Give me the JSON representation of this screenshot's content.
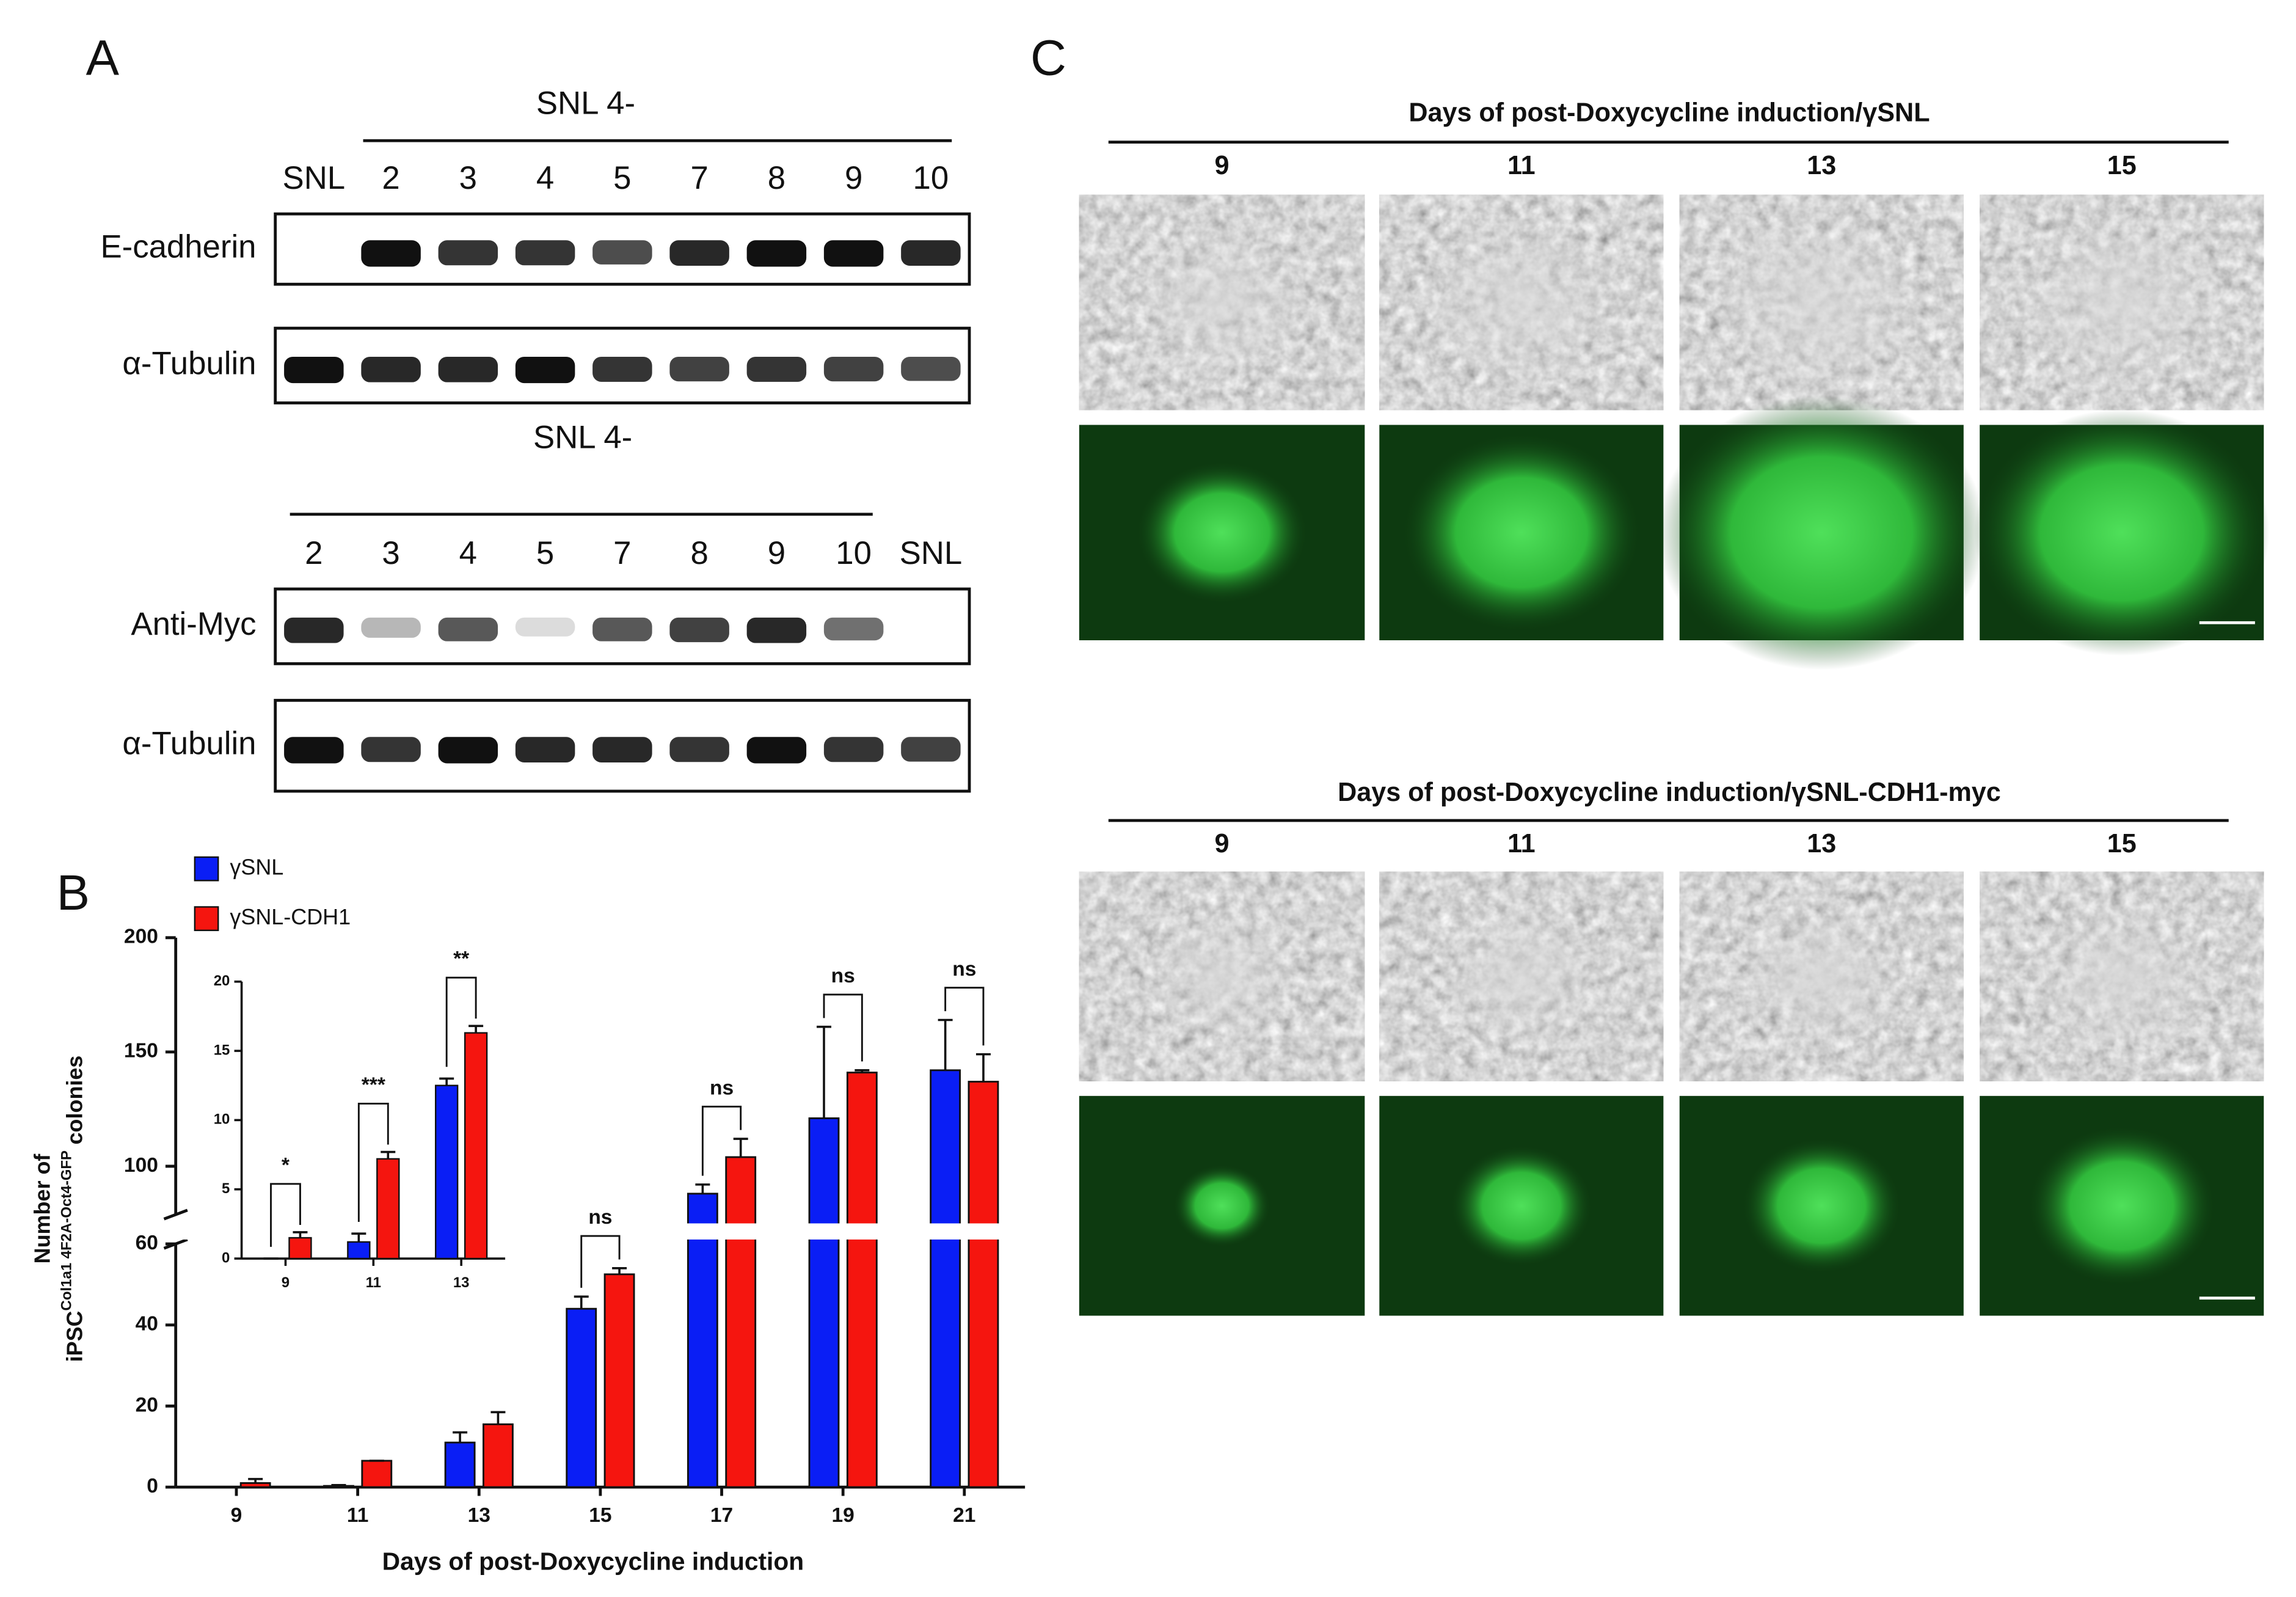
{
  "panel_labels": [
    "A",
    "B",
    "C"
  ],
  "blots": [
    {
      "header": "SNL 4-",
      "lanes": [
        "SNL",
        "2",
        "3",
        "4",
        "5",
        "7",
        "8",
        "9",
        "10"
      ],
      "rows": [
        "E-cadherin",
        "α-Tubulin"
      ]
    },
    {
      "header": "SNL 4-",
      "lanes": [
        "2",
        "3",
        "4",
        "5",
        "7",
        "8",
        "9",
        "10",
        "SNL"
      ],
      "rows": [
        "Anti-Myc",
        "α-Tubulin"
      ]
    }
  ],
  "micrographs": [
    {
      "title": "Days of post-Doxycycline induction/γSNL",
      "days": [
        "9",
        "11",
        "13",
        "15"
      ]
    },
    {
      "title": "Days of post-Doxycycline induction/γSNL-CDH1-myc",
      "days": [
        "9",
        "11",
        "13",
        "15"
      ]
    }
  ],
  "chart_data": [
    {
      "type": "bar",
      "x_label": "Days of post-Doxycycline induction",
      "y_label": [
        "Number of",
        "iPSC",
        "Col1a1 4F2A-Oct4-GFP",
        "colonies"
      ],
      "categories": [
        "9",
        "11",
        "13",
        "15",
        "17",
        "19",
        "21"
      ],
      "series": [
        {
          "name": "γSNL",
          "color": "#0a1ef5",
          "values": [
            0,
            0.3,
            11,
            44,
            88,
            121,
            142
          ],
          "errors": [
            0,
            0.2,
            2.5,
            3,
            4,
            40,
            22
          ]
        },
        {
          "name": "γSNL-CDH1",
          "color": "#f5150f",
          "values": [
            1,
            6.5,
            15.5,
            52.5,
            104,
            141,
            137
          ],
          "errors": [
            1,
            0,
            3,
            1.5,
            8,
            1,
            12
          ]
        }
      ],
      "annotations": [
        null,
        null,
        null,
        "ns",
        "ns",
        "ns",
        "ns"
      ],
      "ylim": [
        0,
        200
      ],
      "ybreak": [
        60,
        100
      ],
      "yticks": [
        0,
        20,
        40,
        60,
        100,
        150,
        200
      ]
    },
    {
      "type": "bar",
      "categories": [
        "9",
        "11",
        "13"
      ],
      "series": [
        {
          "color": "#0a1ef5",
          "values": [
            0,
            1.2,
            12.5
          ],
          "errors": [
            0,
            0.6,
            0.5
          ]
        },
        {
          "color": "#f5150f",
          "values": [
            1.5,
            7.2,
            16.3
          ],
          "errors": [
            0.4,
            0.5,
            0.5
          ]
        }
      ],
      "annotations": [
        "*",
        "***",
        "**"
      ],
      "ylim": [
        0,
        20
      ],
      "yticks": [
        0,
        5,
        10,
        15,
        20
      ]
    }
  ]
}
